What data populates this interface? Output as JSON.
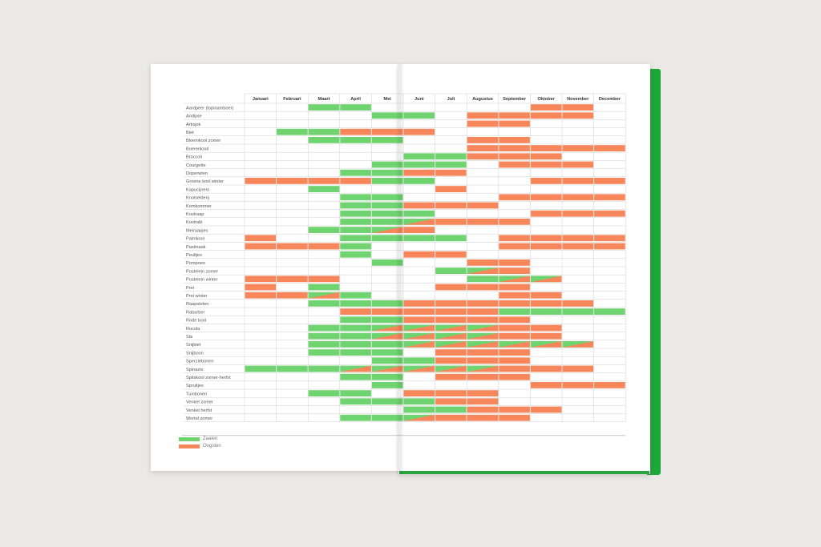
{
  "colors": {
    "sow": "#6fd36f",
    "harvest": "#f7875a",
    "line": "#cfcfcf"
  },
  "months": [
    "Januari",
    "Februari",
    "Maart",
    "April",
    "Mei",
    "Juni",
    "Juli",
    "Augustus",
    "September",
    "Oktober",
    "November",
    "December"
  ],
  "legend": [
    {
      "label": "Zaaien",
      "color": "#6fd36f"
    },
    {
      "label": "Oogsten",
      "color": "#f7875a"
    }
  ],
  "crops": [
    {
      "name": "Aardpeer (topinamboer)",
      "sow": [
        3,
        4
      ],
      "harvest": [
        10,
        11
      ]
    },
    {
      "name": "Andijvie",
      "sow": [
        5,
        6
      ],
      "harvest": [
        8,
        9,
        10,
        11
      ]
    },
    {
      "name": "Artisjok",
      "sow": [],
      "harvest": [
        8,
        9
      ]
    },
    {
      "name": "Biet",
      "sow": [
        2,
        3
      ],
      "harvest": [
        4,
        5,
        6
      ]
    },
    {
      "name": "Bloemkool zomer",
      "sow": [
        3,
        4,
        5
      ],
      "harvest": [
        8,
        9
      ]
    },
    {
      "name": "Boerenkool",
      "sow": [],
      "harvest": [
        8,
        9,
        10,
        11,
        12
      ]
    },
    {
      "name": "Broccoli",
      "sow": [
        6,
        7
      ],
      "harvest": [
        8,
        9,
        10
      ]
    },
    {
      "name": "Courgette",
      "sow": [
        5,
        6,
        7
      ],
      "harvest": [
        9,
        10,
        11
      ]
    },
    {
      "name": "Doperwten",
      "sow": [
        4,
        5
      ],
      "harvest": [
        6,
        7
      ]
    },
    {
      "name": "Groene kool winter",
      "sow": [
        5,
        6
      ],
      "harvest": [
        1,
        2,
        3,
        4,
        10,
        11,
        12
      ]
    },
    {
      "name": "Kapucijners",
      "sow": [
        3
      ],
      "harvest": [
        7
      ]
    },
    {
      "name": "Knolselderij",
      "sow": [
        4,
        5
      ],
      "harvest": [
        9,
        10,
        11,
        12
      ]
    },
    {
      "name": "Komkommer",
      "sow": [
        4,
        5
      ],
      "harvest": [
        6,
        7,
        8
      ]
    },
    {
      "name": "Koolraap",
      "sow": [
        4,
        5,
        6
      ],
      "harvest": [
        10,
        11,
        12
      ]
    },
    {
      "name": "Koolrabi",
      "sow": [
        4,
        5,
        6
      ],
      "harvest": [
        6,
        7,
        8,
        9
      ]
    },
    {
      "name": "Meiraapjes",
      "sow": [
        3,
        4,
        5
      ],
      "harvest": [
        5,
        6
      ]
    },
    {
      "name": "Palmkool",
      "sow": [
        4,
        5,
        6,
        7
      ],
      "harvest": [
        1,
        9,
        10,
        11,
        12
      ]
    },
    {
      "name": "Pastinaak",
      "sow": [
        4
      ],
      "harvest": [
        1,
        2,
        3,
        9,
        10,
        11,
        12
      ]
    },
    {
      "name": "Peultjes",
      "sow": [
        4
      ],
      "harvest": [
        6,
        7
      ]
    },
    {
      "name": "Pompoen",
      "sow": [
        5
      ],
      "harvest": [
        8,
        9
      ]
    },
    {
      "name": "Postelein zomer",
      "sow": [
        7,
        8
      ],
      "harvest": [
        8,
        9
      ]
    },
    {
      "name": "Postelein winter",
      "sow": [
        8,
        9,
        10
      ],
      "harvest": [
        1,
        2,
        3,
        9,
        10
      ]
    },
    {
      "name": "Prei",
      "sow": [
        3
      ],
      "harvest": [
        1,
        7,
        8,
        9
      ]
    },
    {
      "name": "Prei winter",
      "sow": [
        3,
        4
      ],
      "harvest": [
        1,
        2,
        3,
        9,
        10
      ]
    },
    {
      "name": "Raapstelen",
      "sow": [
        3,
        4,
        5
      ],
      "harvest": [
        6,
        7,
        8,
        9,
        10,
        11
      ]
    },
    {
      "name": "Rabarber",
      "sow": [
        9,
        10,
        11,
        12
      ],
      "harvest": [
        4,
        5,
        6,
        7,
        8
      ]
    },
    {
      "name": "Rode kool",
      "sow": [
        4,
        5
      ],
      "harvest": [
        6,
        7,
        8,
        9
      ]
    },
    {
      "name": "Rucola",
      "sow": [
        3,
        4,
        5,
        6,
        7,
        8
      ],
      "harvest": [
        5,
        6,
        7,
        8,
        9,
        10
      ]
    },
    {
      "name": "Sla",
      "sow": [
        3,
        4,
        5,
        6,
        7,
        8
      ],
      "harvest": [
        5,
        6,
        7,
        8,
        9,
        10
      ]
    },
    {
      "name": "Snijbiet",
      "sow": [
        3,
        4,
        5,
        6,
        7,
        8,
        9,
        10,
        11
      ],
      "harvest": [
        6,
        7,
        8,
        9,
        10,
        11
      ]
    },
    {
      "name": "Snijboon",
      "sow": [
        3,
        4,
        5
      ],
      "harvest": [
        7,
        8,
        9
      ]
    },
    {
      "name": "Sperziebonen",
      "sow": [
        5,
        6
      ],
      "harvest": [
        7,
        8,
        9
      ]
    },
    {
      "name": "Spinazie",
      "sow": [
        1,
        2,
        3,
        4,
        5,
        6,
        7,
        8
      ],
      "harvest": [
        4,
        5,
        6,
        7,
        8,
        9,
        10,
        11
      ]
    },
    {
      "name": "Spitskool zomer-herfst",
      "sow": [
        4,
        5
      ],
      "harvest": [
        7,
        8,
        9
      ]
    },
    {
      "name": "Spruitjes",
      "sow": [
        5
      ],
      "harvest": [
        10,
        11,
        12
      ]
    },
    {
      "name": "Tuinbonen",
      "sow": [
        3,
        4
      ],
      "harvest": [
        6,
        7,
        8
      ]
    },
    {
      "name": "Venkel zomer",
      "sow": [
        4,
        5,
        6
      ],
      "harvest": [
        7,
        8
      ]
    },
    {
      "name": "Venkel herfst",
      "sow": [
        6,
        7
      ],
      "harvest": [
        8,
        9,
        10
      ]
    },
    {
      "name": "Wortel zomer",
      "sow": [
        4,
        5,
        6
      ],
      "harvest": [
        6,
        7,
        8,
        9
      ]
    }
  ]
}
